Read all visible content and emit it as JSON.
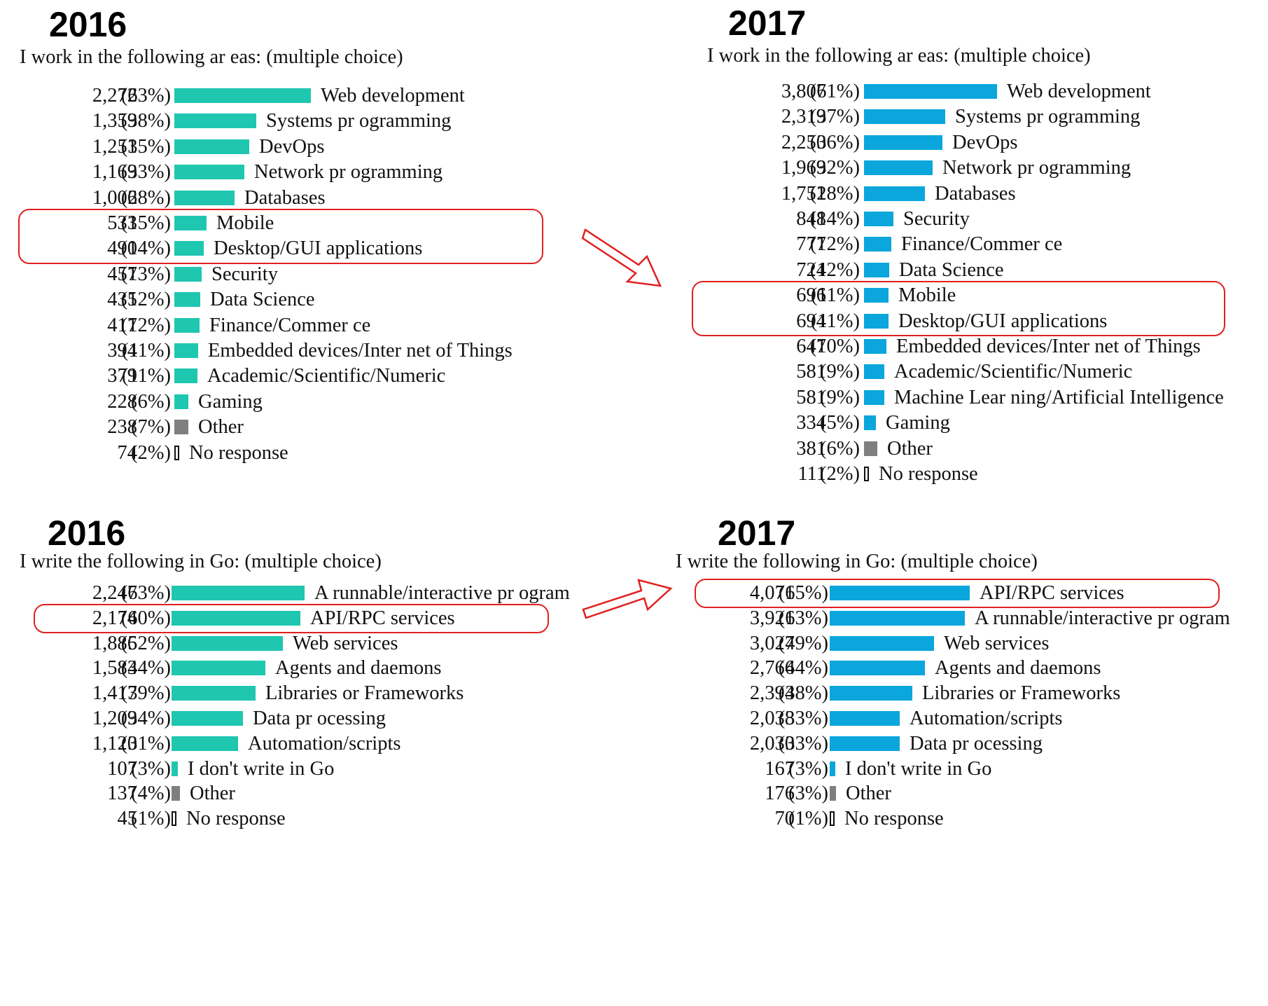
{
  "colors": {
    "teal": "#1fc6b0",
    "blue": "#0aa6dc",
    "other": "#7f7f7f",
    "highlight": "#e02020"
  },
  "chart_data": [
    {
      "type": "bar",
      "orientation": "horizontal",
      "title": "2016",
      "subtitle": "I work in the following ar   eas: (multiple choice)",
      "color": "teal",
      "highlighted": [
        "Mobile",
        "Desktop/GUI applications"
      ],
      "rows": [
        {
          "count": "2,272",
          "pct": "(63%)",
          "label": "Web development",
          "value": 2272
        },
        {
          "count": "1,359",
          "pct": "(38%)",
          "label": "Systems pr   ogramming",
          "value": 1359
        },
        {
          "count": "1,251",
          "pct": "(35%)",
          "label": "DevOps",
          "value": 1251
        },
        {
          "count": "1,169",
          "pct": "(33%)",
          "label": "Network pr  ogramming",
          "value": 1169
        },
        {
          "count": "1,006",
          "pct": "(28%)",
          "label": "Databases",
          "value": 1006
        },
        {
          "count": "533",
          "pct": "(15%)",
          "label": "Mobile",
          "value": 533
        },
        {
          "count": "490",
          "pct": "(14%)",
          "label": "Desktop/GUI applications",
          "value": 490
        },
        {
          "count": "457",
          "pct": "(13%)",
          "label": "Security",
          "value": 457
        },
        {
          "count": "435",
          "pct": "(12%)",
          "label": "Data Science",
          "value": 435
        },
        {
          "count": "417",
          "pct": "(12%)",
          "label": "Finance/Commer    ce",
          "value": 417
        },
        {
          "count": "394",
          "pct": "(11%)",
          "label": "Embedded devices/Inter      net of Things",
          "value": 394
        },
        {
          "count": "379",
          "pct": "(11%)",
          "label": "Academic/Scientific/Numeric",
          "value": 379
        },
        {
          "count": "228",
          "pct": "(6%)",
          "label": "Gaming",
          "value": 228
        },
        {
          "count": "238",
          "pct": "(7%)",
          "label": "Other",
          "value": 238,
          "kind": "other"
        },
        {
          "count": "74",
          "pct": "(2%)",
          "label": "No response",
          "value": 74,
          "kind": "nores"
        }
      ]
    },
    {
      "type": "bar",
      "orientation": "horizontal",
      "title": "2017",
      "subtitle": "I work in the following ar   eas: (multiple choice)",
      "color": "blue",
      "highlighted": [
        "Mobile",
        "Desktop/GUI applications"
      ],
      "rows": [
        {
          "count": "3,807",
          "pct": "(61%)",
          "label": "Web development",
          "value": 3807
        },
        {
          "count": "2,319",
          "pct": "(37%)",
          "label": "Systems pr   ogramming",
          "value": 2319
        },
        {
          "count": "2,250",
          "pct": "(36%)",
          "label": "DevOps",
          "value": 2250
        },
        {
          "count": "1,969",
          "pct": "(32%)",
          "label": "Network pr  ogramming",
          "value": 1969
        },
        {
          "count": "1,751",
          "pct": "(28%)",
          "label": "Databases",
          "value": 1751
        },
        {
          "count": "848",
          "pct": "(14%)",
          "label": "Security",
          "value": 848
        },
        {
          "count": "777",
          "pct": "(12%)",
          "label": "Finance/Commer    ce",
          "value": 777
        },
        {
          "count": "724",
          "pct": "(12%)",
          "label": "Data Science",
          "value": 724
        },
        {
          "count": "696",
          "pct": "(11%)",
          "label": "Mobile",
          "value": 696
        },
        {
          "count": "694",
          "pct": "(11%)",
          "label": "Desktop/GUI applications",
          "value": 694
        },
        {
          "count": "647",
          "pct": "(10%)",
          "label": "Embedded devices/Inter      net of Things",
          "value": 647
        },
        {
          "count": "581",
          "pct": "(9%)",
          "label": "Academic/Scientific/Numeric",
          "value": 581
        },
        {
          "count": "581",
          "pct": "(9%)",
          "label": "Machine Lear  ning/Artificial Intelligence",
          "value": 581
        },
        {
          "count": "334",
          "pct": "(5%)",
          "label": "Gaming",
          "value": 334
        },
        {
          "count": "381",
          "pct": "(6%)",
          "label": "Other",
          "value": 381,
          "kind": "other"
        },
        {
          "count": "111",
          "pct": "(2%)",
          "label": "No response",
          "value": 111,
          "kind": "nores"
        }
      ]
    },
    {
      "type": "bar",
      "orientation": "horizontal",
      "title": "2016",
      "subtitle": "I write the following in Go: (multiple choice)",
      "color": "teal",
      "highlighted": [
        "API/RPC services"
      ],
      "rows": [
        {
          "count": "2,247",
          "pct": "(63%)",
          "label": "A runnable/interactive pr    ogram",
          "value": 2247
        },
        {
          "count": "2,174",
          "pct": "(60%)",
          "label": "API/RPC services",
          "value": 2174
        },
        {
          "count": "1,886",
          "pct": "(52%)",
          "label": "Web services",
          "value": 1886
        },
        {
          "count": "1,583",
          "pct": "(44%)",
          "label": "Agents and daemons",
          "value": 1583
        },
        {
          "count": "1,417",
          "pct": "(39%)",
          "label": "Libraries or Frameworks",
          "value": 1417
        },
        {
          "count": "1,209",
          "pct": "(34%)",
          "label": "Data pr ocessing",
          "value": 1209
        },
        {
          "count": "1,120",
          "pct": "(31%)",
          "label": "Automation/scripts",
          "value": 1120
        },
        {
          "count": "107",
          "pct": "(3%)",
          "label": "I don't write in Go",
          "value": 107
        },
        {
          "count": "137",
          "pct": "(4%)",
          "label": "Other",
          "value": 137,
          "kind": "other"
        },
        {
          "count": "45",
          "pct": "(1%)",
          "label": "No response",
          "value": 45,
          "kind": "nores"
        }
      ]
    },
    {
      "type": "bar",
      "orientation": "horizontal",
      "title": "2017",
      "subtitle": "I write the following in Go: (multiple choice)",
      "color": "blue",
      "highlighted": [
        "API/RPC services"
      ],
      "rows": [
        {
          "count": "4,071",
          "pct": "(65%)",
          "label": "API/RPC services",
          "value": 4071
        },
        {
          "count": "3,921",
          "pct": "(63%)",
          "label": "A runnable/interactive pr    ogram",
          "value": 3921
        },
        {
          "count": "3,027",
          "pct": "(49%)",
          "label": "Web services",
          "value": 3027
        },
        {
          "count": "2,766",
          "pct": "(44%)",
          "label": "Agents and daemons",
          "value": 2766
        },
        {
          "count": "2,394",
          "pct": "(38%)",
          "label": "Libraries or Frameworks",
          "value": 2394
        },
        {
          "count": "2,038",
          "pct": "(33%)",
          "label": "Automation/scripts",
          "value": 2038
        },
        {
          "count": "2,030",
          "pct": "(33%)",
          "label": "Data pr ocessing",
          "value": 2030
        },
        {
          "count": "167",
          "pct": "(3%)",
          "label": "I don't write in Go",
          "value": 167
        },
        {
          "count": "176",
          "pct": "(3%)",
          "label": "Other",
          "value": 176,
          "kind": "other"
        },
        {
          "count": "70",
          "pct": "(1%)",
          "label": "No response",
          "value": 70,
          "kind": "nores"
        }
      ]
    }
  ]
}
